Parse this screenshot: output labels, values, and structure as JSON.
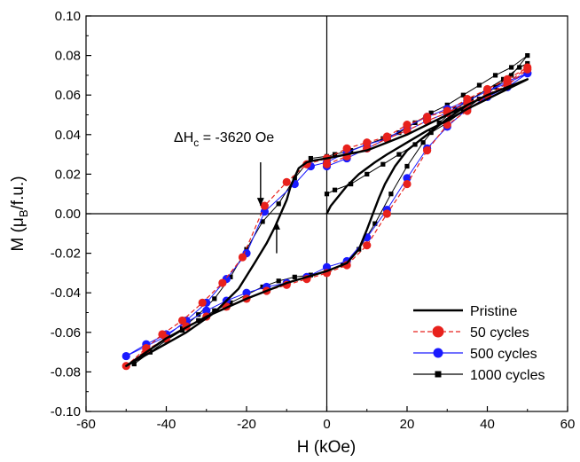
{
  "chart_data": {
    "type": "line",
    "title": "",
    "xlabel": "H (kOe)",
    "ylabel_parts": {
      "main": "M (",
      "mu": "μ",
      "sub": "B",
      "tail": "/f.u.)"
    },
    "xlim": [
      -60,
      60
    ],
    "ylim": [
      -0.1,
      0.1
    ],
    "xticks": [
      -60,
      -40,
      -20,
      0,
      20,
      40,
      60
    ],
    "yticks": [
      -0.1,
      -0.08,
      -0.06,
      -0.04,
      -0.02,
      0.0,
      0.02,
      0.04,
      0.06,
      0.08,
      0.1
    ],
    "xtick_labels": [
      "-60",
      "-40",
      "-20",
      "0",
      "20",
      "40",
      "60"
    ],
    "ytick_labels": [
      "-0.10",
      "-0.08",
      "-0.06",
      "-0.04",
      "-0.02",
      "0.00",
      "0.02",
      "0.04",
      "0.06",
      "0.08",
      "0.10"
    ],
    "grid": false,
    "legend_position": "bottom-right",
    "annotation": {
      "prefix": "ΔH",
      "sub": "c",
      "value": " = -3620 Oe"
    },
    "arrows": [
      {
        "x": -16.5,
        "from_y": 0.026,
        "to_y": 0.004
      },
      {
        "x": -12.5,
        "from_y": -0.02,
        "to_y": -0.004
      }
    ],
    "series": [
      {
        "name": "Pristine",
        "color": "#000000",
        "marker": "none",
        "dash": false,
        "width": 2.4,
        "points": [
          [
            0,
            0.0
          ],
          [
            1,
            0.004
          ],
          [
            3,
            0.009
          ],
          [
            5,
            0.014
          ],
          [
            8,
            0.02
          ],
          [
            12,
            0.026
          ],
          [
            15,
            0.03
          ],
          [
            20,
            0.036
          ],
          [
            25,
            0.042
          ],
          [
            30,
            0.047
          ],
          [
            35,
            0.053
          ],
          [
            40,
            0.058
          ],
          [
            45,
            0.063
          ],
          [
            50,
            0.068
          ],
          [
            45,
            0.064
          ],
          [
            40,
            0.06
          ],
          [
            35,
            0.055
          ],
          [
            30,
            0.05
          ],
          [
            25,
            0.045
          ],
          [
            20,
            0.04
          ],
          [
            15,
            0.036
          ],
          [
            10,
            0.032
          ],
          [
            5,
            0.03
          ],
          [
            0,
            0.028
          ],
          [
            -3,
            0.027
          ],
          [
            -5,
            0.026
          ],
          [
            -7,
            0.023
          ],
          [
            -9,
            0.014
          ],
          [
            -10,
            0.007
          ],
          [
            -11.5,
            0.0
          ],
          [
            -13,
            -0.007
          ],
          [
            -15,
            -0.015
          ],
          [
            -18,
            -0.025
          ],
          [
            -22,
            -0.038
          ],
          [
            -28,
            -0.05
          ],
          [
            -35,
            -0.06
          ],
          [
            -42,
            -0.068
          ],
          [
            -50,
            -0.077
          ],
          [
            -40,
            -0.063
          ],
          [
            -30,
            -0.052
          ],
          [
            -20,
            -0.043
          ],
          [
            -10,
            -0.035
          ],
          [
            0,
            -0.029
          ],
          [
            5,
            -0.025
          ],
          [
            8,
            -0.018
          ],
          [
            10,
            -0.008
          ],
          [
            11.5,
            0.0
          ],
          [
            13,
            0.008
          ],
          [
            14.5,
            0.015
          ],
          [
            17,
            0.024
          ],
          [
            20,
            0.032
          ],
          [
            25,
            0.04
          ],
          [
            30,
            0.048
          ],
          [
            35,
            0.055
          ],
          [
            40,
            0.06
          ],
          [
            45,
            0.064
          ],
          [
            50,
            0.068
          ]
        ]
      },
      {
        "name": "50 cycles",
        "color": "#e8211c",
        "marker": "circle",
        "dash": true,
        "width": 1.2,
        "points": [
          [
            0,
            0.025
          ],
          [
            5,
            0.029
          ],
          [
            10,
            0.033
          ],
          [
            15,
            0.038
          ],
          [
            20,
            0.042
          ],
          [
            25,
            0.047
          ],
          [
            30,
            0.051
          ],
          [
            35,
            0.056
          ],
          [
            40,
            0.06
          ],
          [
            45,
            0.066
          ],
          [
            50,
            0.074
          ],
          [
            45,
            0.068
          ],
          [
            40,
            0.063
          ],
          [
            35,
            0.058
          ],
          [
            30,
            0.052
          ],
          [
            25,
            0.049
          ],
          [
            20,
            0.045
          ],
          [
            15,
            0.039
          ],
          [
            10,
            0.036
          ],
          [
            5,
            0.033
          ],
          [
            0,
            0.028
          ],
          [
            -5,
            0.025
          ],
          [
            -10,
            0.016
          ],
          [
            -15.5,
            0.004
          ],
          [
            -21,
            -0.022
          ],
          [
            -26,
            -0.035
          ],
          [
            -31,
            -0.045
          ],
          [
            -36,
            -0.054
          ],
          [
            -41,
            -0.061
          ],
          [
            -45,
            -0.068
          ],
          [
            -50,
            -0.077
          ],
          [
            -45,
            -0.069
          ],
          [
            -40,
            -0.063
          ],
          [
            -35,
            -0.057
          ],
          [
            -30,
            -0.052
          ],
          [
            -25,
            -0.047
          ],
          [
            -20,
            -0.043
          ],
          [
            -15,
            -0.039
          ],
          [
            -10,
            -0.036
          ],
          [
            -5,
            -0.033
          ],
          [
            0,
            -0.03
          ],
          [
            5,
            -0.026
          ],
          [
            10,
            -0.016
          ],
          [
            15,
            0.0
          ],
          [
            20,
            0.015
          ],
          [
            25,
            0.032
          ],
          [
            30,
            0.045
          ],
          [
            35,
            0.052
          ],
          [
            40,
            0.06
          ],
          [
            45,
            0.065
          ],
          [
            50,
            0.073
          ]
        ]
      },
      {
        "name": "500 cycles",
        "color": "#1a1aff",
        "marker": "circle",
        "dash": false,
        "width": 1.0,
        "points": [
          [
            0,
            0.024
          ],
          [
            5,
            0.028
          ],
          [
            10,
            0.033
          ],
          [
            15,
            0.038
          ],
          [
            20,
            0.044
          ],
          [
            25,
            0.049
          ],
          [
            30,
            0.053
          ],
          [
            35,
            0.057
          ],
          [
            40,
            0.062
          ],
          [
            45,
            0.066
          ],
          [
            50,
            0.071
          ],
          [
            45,
            0.067
          ],
          [
            40,
            0.062
          ],
          [
            35,
            0.057
          ],
          [
            30,
            0.051
          ],
          [
            25,
            0.047
          ],
          [
            20,
            0.042
          ],
          [
            15,
            0.038
          ],
          [
            10,
            0.035
          ],
          [
            5,
            0.031
          ],
          [
            0,
            0.026
          ],
          [
            -4,
            0.024
          ],
          [
            -8,
            0.015
          ],
          [
            -15.5,
            0.001
          ],
          [
            -20,
            -0.02
          ],
          [
            -25,
            -0.033
          ],
          [
            -30,
            -0.045
          ],
          [
            -35,
            -0.054
          ],
          [
            -40,
            -0.062
          ],
          [
            -45,
            -0.067
          ],
          [
            -50,
            -0.072
          ],
          [
            -45,
            -0.066
          ],
          [
            -40,
            -0.061
          ],
          [
            -35,
            -0.055
          ],
          [
            -30,
            -0.049
          ],
          [
            -25,
            -0.044
          ],
          [
            -20,
            -0.04
          ],
          [
            -15,
            -0.037
          ],
          [
            -10,
            -0.035
          ],
          [
            -5,
            -0.032
          ],
          [
            0,
            -0.027
          ],
          [
            5,
            -0.024
          ],
          [
            10,
            -0.012
          ],
          [
            15,
            0.002
          ],
          [
            20,
            0.018
          ],
          [
            25,
            0.033
          ],
          [
            30,
            0.044
          ],
          [
            35,
            0.053
          ],
          [
            40,
            0.059
          ],
          [
            45,
            0.064
          ],
          [
            50,
            0.071
          ]
        ]
      },
      {
        "name": "1000 cycles",
        "color": "#000000",
        "marker": "square",
        "dash": false,
        "width": 1.0,
        "points": [
          [
            0,
            0.01
          ],
          [
            2,
            0.012
          ],
          [
            6,
            0.015
          ],
          [
            10,
            0.02
          ],
          [
            14,
            0.025
          ],
          [
            18,
            0.03
          ],
          [
            22,
            0.035
          ],
          [
            26,
            0.041
          ],
          [
            30,
            0.046
          ],
          [
            34,
            0.052
          ],
          [
            38,
            0.058
          ],
          [
            42,
            0.064
          ],
          [
            46,
            0.07
          ],
          [
            50,
            0.08
          ],
          [
            46,
            0.074
          ],
          [
            42,
            0.07
          ],
          [
            38,
            0.065
          ],
          [
            34,
            0.06
          ],
          [
            30,
            0.055
          ],
          [
            26,
            0.051
          ],
          [
            22,
            0.046
          ],
          [
            18,
            0.041
          ],
          [
            14,
            0.038
          ],
          [
            10,
            0.035
          ],
          [
            6,
            0.032
          ],
          [
            2,
            0.03
          ],
          [
            0,
            0.029
          ],
          [
            -4,
            0.028
          ],
          [
            -8,
            0.018
          ],
          [
            -12,
            0.005
          ],
          [
            -16,
            -0.004
          ],
          [
            -20,
            -0.018
          ],
          [
            -24,
            -0.032
          ],
          [
            -28,
            -0.043
          ],
          [
            -32,
            -0.051
          ],
          [
            -36,
            -0.058
          ],
          [
            -40,
            -0.064
          ],
          [
            -44,
            -0.07
          ],
          [
            -48,
            -0.076
          ],
          [
            -44,
            -0.07
          ],
          [
            -40,
            -0.064
          ],
          [
            -36,
            -0.059
          ],
          [
            -32,
            -0.054
          ],
          [
            -28,
            -0.049
          ],
          [
            -24,
            -0.045
          ],
          [
            -20,
            -0.041
          ],
          [
            -16,
            -0.037
          ],
          [
            -12,
            -0.034
          ],
          [
            -8,
            -0.032
          ],
          [
            -4,
            -0.031
          ],
          [
            0,
            -0.029
          ],
          [
            4,
            -0.026
          ],
          [
            8,
            -0.018
          ],
          [
            12,
            -0.005
          ],
          [
            16,
            0.01
          ],
          [
            20,
            0.024
          ],
          [
            24,
            0.036
          ],
          [
            28,
            0.046
          ],
          [
            32,
            0.053
          ],
          [
            36,
            0.058
          ],
          [
            40,
            0.063
          ],
          [
            44,
            0.068
          ],
          [
            48,
            0.074
          ],
          [
            50,
            0.076
          ]
        ]
      }
    ]
  }
}
